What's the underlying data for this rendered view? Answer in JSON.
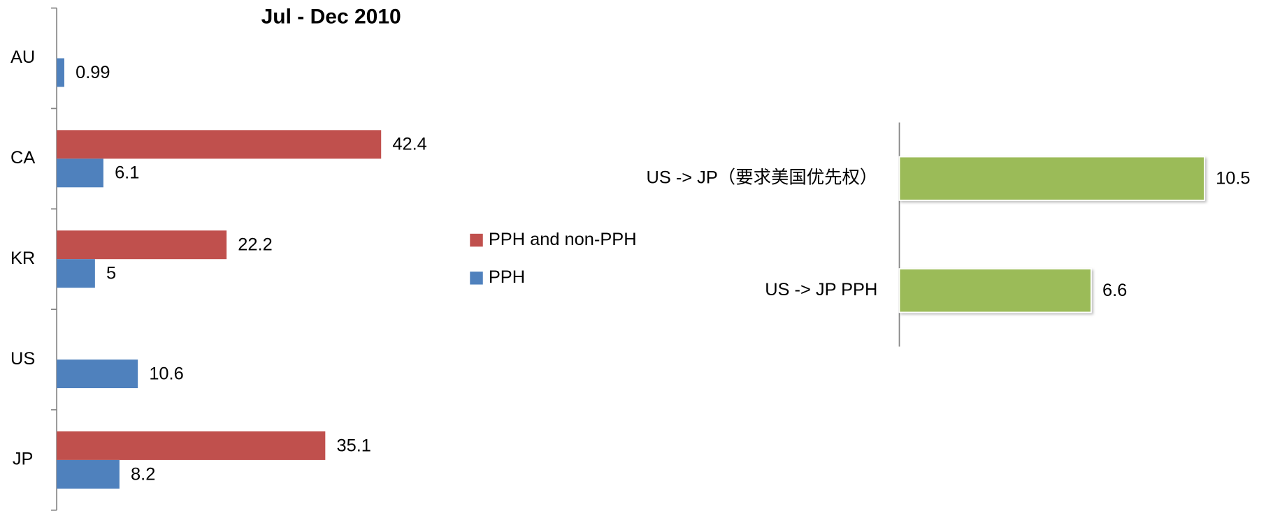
{
  "chart_data": [
    {
      "type": "bar",
      "orientation": "horizontal",
      "title": "Jul - Dec 2010",
      "categories": [
        "AU",
        "CA",
        "KR",
        "US",
        "JP"
      ],
      "series": [
        {
          "name": "PPH and non-PPH",
          "color": "#c0504d",
          "values": [
            null,
            42.4,
            22.2,
            null,
            35.1
          ]
        },
        {
          "name": "PPH",
          "color": "#4f81bd",
          "values": [
            0.99,
            6.1,
            5,
            10.6,
            8.2
          ]
        }
      ],
      "legend": "right"
    },
    {
      "type": "bar",
      "orientation": "horizontal",
      "categories": [
        "US -> JP（要求美国优先权）",
        "US -> JP PPH"
      ],
      "values": [
        10.5,
        6.6
      ],
      "color": "#9bbb59"
    }
  ]
}
